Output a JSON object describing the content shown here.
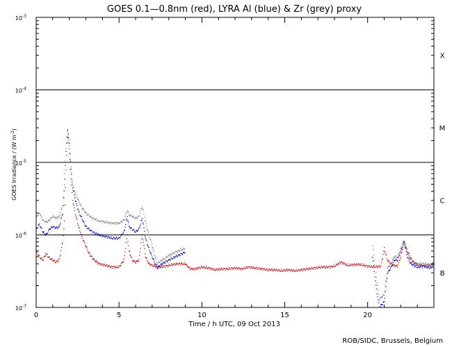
{
  "chart_data": {
    "type": "scatter",
    "title": "GOES 0.1—0.8nm (red), LYRA Al (blue) & Zr (grey) proxy",
    "xlabel": "Time / h UTC, 09 Oct 2013",
    "ylabel_main": "GOES Irradiance / (W m",
    "ylabel_sup": "-2",
    "ylabel_close": ")",
    "credit": "ROB/SIDC, Brussels, Belgium",
    "x_range": [
      0,
      24
    ],
    "y_range": [
      1e-07,
      0.001
    ],
    "y_scale": "log",
    "x_ticks": [
      {
        "value": 0,
        "label": "0"
      },
      {
        "value": 5,
        "label": "5"
      },
      {
        "value": 10,
        "label": "10"
      },
      {
        "value": 15,
        "label": "15"
      },
      {
        "value": 20,
        "label": "20"
      }
    ],
    "y_ticks": [
      {
        "value": 1e-07,
        "base": "10",
        "exp": "-7"
      },
      {
        "value": 1e-06,
        "base": "10",
        "exp": "-6"
      },
      {
        "value": 1e-05,
        "base": "10",
        "exp": "-5"
      },
      {
        "value": 0.0001,
        "base": "10",
        "exp": "-4"
      },
      {
        "value": 0.001,
        "base": "10",
        "exp": "-3"
      }
    ],
    "flare_lines": [
      1e-06,
      1e-05,
      0.0001
    ],
    "flare_classes": [
      {
        "label": "X",
        "value": 0.0003
      },
      {
        "label": "M",
        "value": 3e-05
      },
      {
        "label": "C",
        "value": 3e-06
      },
      {
        "label": "B",
        "value": 3e-07
      }
    ],
    "series": [
      {
        "color": "#cc0000",
        "points": [
          [
            0.0,
            6e-07
          ],
          [
            0.2,
            5e-07
          ],
          [
            0.4,
            4.5e-07
          ],
          [
            0.6,
            5.5e-07
          ],
          [
            0.8,
            4.8e-07
          ],
          [
            1.0,
            4.5e-07
          ],
          [
            1.2,
            4.2e-07
          ],
          [
            1.4,
            4.6e-07
          ],
          [
            1.6,
            8e-07
          ],
          [
            1.7,
            1.5e-06
          ],
          [
            1.8,
            8e-06
          ],
          [
            1.9,
            2.8e-05
          ],
          [
            2.0,
            1.5e-05
          ],
          [
            2.1,
            6e-06
          ],
          [
            2.2,
            3e-06
          ],
          [
            2.4,
            1.8e-06
          ],
          [
            2.6,
            1.2e-06
          ],
          [
            2.8,
            9e-07
          ],
          [
            3.0,
            7e-07
          ],
          [
            3.2,
            5.5e-07
          ],
          [
            3.5,
            4.5e-07
          ],
          [
            3.8,
            4e-07
          ],
          [
            4.2,
            3.8e-07
          ],
          [
            4.6,
            3.6e-07
          ],
          [
            5.0,
            3.6e-07
          ],
          [
            5.3,
            4.5e-07
          ],
          [
            5.5,
            1e-06
          ],
          [
            5.6,
            6e-07
          ],
          [
            5.8,
            4.5e-07
          ],
          [
            6.0,
            4.2e-07
          ],
          [
            6.2,
            4.5e-07
          ],
          [
            6.4,
            1e-06
          ],
          [
            6.6,
            5e-07
          ],
          [
            6.8,
            4e-07
          ],
          [
            7.0,
            3.8e-07
          ],
          [
            7.4,
            3.6e-07
          ],
          [
            7.8,
            3.7e-07
          ],
          [
            8.2,
            3.9e-07
          ],
          [
            8.6,
            4e-07
          ],
          [
            9.0,
            4e-07
          ],
          [
            9.3,
            3.4e-07
          ],
          [
            9.6,
            3.4e-07
          ],
          [
            10.0,
            3.6e-07
          ],
          [
            10.4,
            3.5e-07
          ],
          [
            10.8,
            3.3e-07
          ],
          [
            11.2,
            3.4e-07
          ],
          [
            11.6,
            3.4e-07
          ],
          [
            12.0,
            3.5e-07
          ],
          [
            12.4,
            3.4e-07
          ],
          [
            12.8,
            3.6e-07
          ],
          [
            13.2,
            3.5e-07
          ],
          [
            13.6,
            3.4e-07
          ],
          [
            14.0,
            3.3e-07
          ],
          [
            14.4,
            3.3e-07
          ],
          [
            14.8,
            3.2e-07
          ],
          [
            15.2,
            3.3e-07
          ],
          [
            15.6,
            3.2e-07
          ],
          [
            16.0,
            3.3e-07
          ],
          [
            16.4,
            3.4e-07
          ],
          [
            16.8,
            3.5e-07
          ],
          [
            17.2,
            3.6e-07
          ],
          [
            17.6,
            3.6e-07
          ],
          [
            18.0,
            3.7e-07
          ],
          [
            18.4,
            4.2e-07
          ],
          [
            18.8,
            3.8e-07
          ],
          [
            19.2,
            3.9e-07
          ],
          [
            19.6,
            3.9e-07
          ],
          [
            20.0,
            3.7e-07
          ],
          [
            20.4,
            3.6e-07
          ],
          [
            20.8,
            3.7e-07
          ],
          [
            21.0,
            6.5e-07
          ],
          [
            21.2,
            4.5e-07
          ],
          [
            21.4,
            4e-07
          ],
          [
            21.6,
            3.8e-07
          ],
          [
            21.8,
            3.7e-07
          ],
          [
            22.0,
            5e-07
          ],
          [
            22.2,
            8e-07
          ],
          [
            22.4,
            6e-07
          ],
          [
            22.6,
            4.8e-07
          ],
          [
            22.8,
            4.2e-07
          ],
          [
            23.0,
            3.9e-07
          ],
          [
            23.4,
            3.8e-07
          ],
          [
            23.8,
            3.8e-07
          ],
          [
            24.0,
            4e-07
          ]
        ]
      },
      {
        "color": "#0000cc",
        "points": [
          [
            0.0,
            1.2e-06
          ],
          [
            0.2,
            1.4e-06
          ],
          [
            0.4,
            1.1e-06
          ],
          [
            0.6,
            1e-06
          ],
          [
            0.8,
            1.2e-06
          ],
          [
            1.0,
            1.3e-06
          ],
          [
            1.2,
            1.25e-06
          ],
          [
            1.4,
            1.3e-06
          ],
          [
            1.6,
            2e-06
          ],
          [
            1.7,
            4e-06
          ],
          [
            1.8,
            1.4e-05
          ],
          [
            1.9,
            2.9e-05
          ],
          [
            2.0,
            1.8e-05
          ],
          [
            2.1,
            8e-06
          ],
          [
            2.2,
            4.5e-06
          ],
          [
            2.4,
            2.8e-06
          ],
          [
            2.6,
            2e-06
          ],
          [
            2.8,
            1.6e-06
          ],
          [
            3.0,
            1.3e-06
          ],
          [
            3.4,
            1.1e-06
          ],
          [
            3.8,
            1e-06
          ],
          [
            4.2,
            9.5e-07
          ],
          [
            4.6,
            9e-07
          ],
          [
            5.0,
            9e-07
          ],
          [
            5.3,
            1.1e-06
          ],
          [
            5.5,
            1.8e-06
          ],
          [
            5.6,
            1.3e-06
          ],
          [
            5.8,
            1.2e-06
          ],
          [
            6.0,
            1.1e-06
          ],
          [
            6.2,
            1.2e-06
          ],
          [
            6.4,
            1.7e-06
          ],
          [
            6.6,
            9e-07
          ],
          [
            6.8,
            6.5e-07
          ],
          [
            7.0,
            5e-07
          ],
          [
            7.3,
            3.5e-07
          ],
          [
            7.6,
            4e-07
          ],
          [
            8.0,
            4.5e-07
          ],
          [
            8.4,
            5e-07
          ],
          [
            8.8,
            5.5e-07
          ],
          [
            9.0,
            5.8e-07
          ],
          [
            20.3,
            5e-07
          ],
          [
            20.5,
            2e-07
          ],
          [
            20.7,
            1e-07
          ],
          [
            21.0,
            1.2e-07
          ],
          [
            21.2,
            3e-07
          ],
          [
            21.4,
            3.5e-07
          ],
          [
            21.6,
            4.5e-07
          ],
          [
            21.8,
            4.5e-07
          ],
          [
            22.0,
            6e-07
          ],
          [
            22.2,
            8e-07
          ],
          [
            22.4,
            5e-07
          ],
          [
            22.6,
            4e-07
          ],
          [
            22.8,
            3.8e-07
          ],
          [
            23.0,
            3.6e-07
          ],
          [
            23.4,
            3.7e-07
          ],
          [
            23.8,
            3.5e-07
          ],
          [
            24.0,
            3.8e-07
          ]
        ]
      },
      {
        "color": "#808080",
        "points": [
          [
            0.0,
            1.8e-06
          ],
          [
            0.2,
            2e-06
          ],
          [
            0.4,
            1.6e-06
          ],
          [
            0.6,
            1.5e-06
          ],
          [
            0.8,
            1.6e-06
          ],
          [
            1.0,
            1.8e-06
          ],
          [
            1.2,
            1.7e-06
          ],
          [
            1.4,
            1.8e-06
          ],
          [
            1.6,
            2.6e-06
          ],
          [
            1.7,
            5e-06
          ],
          [
            1.8,
            1.5e-05
          ],
          [
            1.9,
            2.7e-05
          ],
          [
            2.0,
            1.7e-05
          ],
          [
            2.1,
            8.5e-06
          ],
          [
            2.2,
            5e-06
          ],
          [
            2.4,
            3.5e-06
          ],
          [
            2.6,
            2.8e-06
          ],
          [
            2.8,
            2.3e-06
          ],
          [
            3.0,
            2e-06
          ],
          [
            3.4,
            1.7e-06
          ],
          [
            3.8,
            1.55e-06
          ],
          [
            4.2,
            1.5e-06
          ],
          [
            4.6,
            1.45e-06
          ],
          [
            5.0,
            1.45e-06
          ],
          [
            5.3,
            1.6e-06
          ],
          [
            5.5,
            2.2e-06
          ],
          [
            5.6,
            1.9e-06
          ],
          [
            5.8,
            1.8e-06
          ],
          [
            6.0,
            1.7e-06
          ],
          [
            6.2,
            1.8e-06
          ],
          [
            6.4,
            2.5e-06
          ],
          [
            6.6,
            1.5e-06
          ],
          [
            6.8,
            1e-06
          ],
          [
            7.0,
            7e-07
          ],
          [
            7.3,
            4e-07
          ],
          [
            7.6,
            4.5e-07
          ],
          [
            8.0,
            5.2e-07
          ],
          [
            8.4,
            5.8e-07
          ],
          [
            8.8,
            6.3e-07
          ],
          [
            9.0,
            6.6e-07
          ],
          [
            20.3,
            7e-07
          ],
          [
            20.5,
            3e-07
          ],
          [
            20.7,
            1.3e-07
          ],
          [
            21.0,
            1.5e-07
          ],
          [
            21.2,
            3.5e-07
          ],
          [
            21.4,
            4e-07
          ],
          [
            21.6,
            5e-07
          ],
          [
            21.8,
            5e-07
          ],
          [
            22.0,
            6.5e-07
          ],
          [
            22.2,
            8.5e-07
          ],
          [
            22.4,
            5.5e-07
          ],
          [
            22.6,
            4.4e-07
          ],
          [
            22.8,
            4.1e-07
          ],
          [
            23.0,
            4e-07
          ],
          [
            23.4,
            4e-07
          ],
          [
            23.8,
            3.9e-07
          ],
          [
            24.0,
            4.2e-07
          ]
        ]
      }
    ]
  }
}
